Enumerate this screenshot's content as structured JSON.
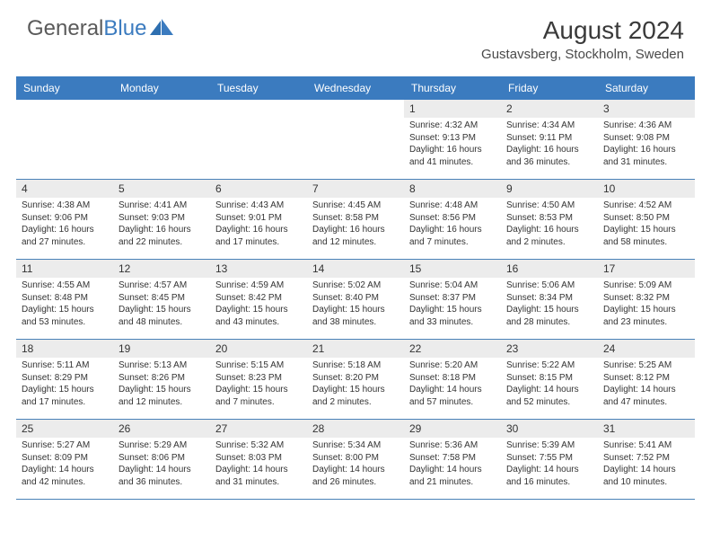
{
  "logo": {
    "text_gray": "General",
    "text_blue": "Blue"
  },
  "title": "August 2024",
  "location": "Gustavsberg, Stockholm, Sweden",
  "colors": {
    "header_bg": "#3b7bbf",
    "header_text": "#ffffff",
    "daynum_bg": "#ececec",
    "row_border": "#4a82b8",
    "text": "#333333",
    "logo_gray": "#5a5a5a",
    "logo_blue": "#3b7bbf"
  },
  "weekdays": [
    "Sunday",
    "Monday",
    "Tuesday",
    "Wednesday",
    "Thursday",
    "Friday",
    "Saturday"
  ],
  "weeks": [
    [
      {
        "empty": true
      },
      {
        "empty": true
      },
      {
        "empty": true
      },
      {
        "empty": true
      },
      {
        "day": "1",
        "sunrise": "Sunrise: 4:32 AM",
        "sunset": "Sunset: 9:13 PM",
        "daylight1": "Daylight: 16 hours",
        "daylight2": "and 41 minutes."
      },
      {
        "day": "2",
        "sunrise": "Sunrise: 4:34 AM",
        "sunset": "Sunset: 9:11 PM",
        "daylight1": "Daylight: 16 hours",
        "daylight2": "and 36 minutes."
      },
      {
        "day": "3",
        "sunrise": "Sunrise: 4:36 AM",
        "sunset": "Sunset: 9:08 PM",
        "daylight1": "Daylight: 16 hours",
        "daylight2": "and 31 minutes."
      }
    ],
    [
      {
        "day": "4",
        "sunrise": "Sunrise: 4:38 AM",
        "sunset": "Sunset: 9:06 PM",
        "daylight1": "Daylight: 16 hours",
        "daylight2": "and 27 minutes."
      },
      {
        "day": "5",
        "sunrise": "Sunrise: 4:41 AM",
        "sunset": "Sunset: 9:03 PM",
        "daylight1": "Daylight: 16 hours",
        "daylight2": "and 22 minutes."
      },
      {
        "day": "6",
        "sunrise": "Sunrise: 4:43 AM",
        "sunset": "Sunset: 9:01 PM",
        "daylight1": "Daylight: 16 hours",
        "daylight2": "and 17 minutes."
      },
      {
        "day": "7",
        "sunrise": "Sunrise: 4:45 AM",
        "sunset": "Sunset: 8:58 PM",
        "daylight1": "Daylight: 16 hours",
        "daylight2": "and 12 minutes."
      },
      {
        "day": "8",
        "sunrise": "Sunrise: 4:48 AM",
        "sunset": "Sunset: 8:56 PM",
        "daylight1": "Daylight: 16 hours",
        "daylight2": "and 7 minutes."
      },
      {
        "day": "9",
        "sunrise": "Sunrise: 4:50 AM",
        "sunset": "Sunset: 8:53 PM",
        "daylight1": "Daylight: 16 hours",
        "daylight2": "and 2 minutes."
      },
      {
        "day": "10",
        "sunrise": "Sunrise: 4:52 AM",
        "sunset": "Sunset: 8:50 PM",
        "daylight1": "Daylight: 15 hours",
        "daylight2": "and 58 minutes."
      }
    ],
    [
      {
        "day": "11",
        "sunrise": "Sunrise: 4:55 AM",
        "sunset": "Sunset: 8:48 PM",
        "daylight1": "Daylight: 15 hours",
        "daylight2": "and 53 minutes."
      },
      {
        "day": "12",
        "sunrise": "Sunrise: 4:57 AM",
        "sunset": "Sunset: 8:45 PM",
        "daylight1": "Daylight: 15 hours",
        "daylight2": "and 48 minutes."
      },
      {
        "day": "13",
        "sunrise": "Sunrise: 4:59 AM",
        "sunset": "Sunset: 8:42 PM",
        "daylight1": "Daylight: 15 hours",
        "daylight2": "and 43 minutes."
      },
      {
        "day": "14",
        "sunrise": "Sunrise: 5:02 AM",
        "sunset": "Sunset: 8:40 PM",
        "daylight1": "Daylight: 15 hours",
        "daylight2": "and 38 minutes."
      },
      {
        "day": "15",
        "sunrise": "Sunrise: 5:04 AM",
        "sunset": "Sunset: 8:37 PM",
        "daylight1": "Daylight: 15 hours",
        "daylight2": "and 33 minutes."
      },
      {
        "day": "16",
        "sunrise": "Sunrise: 5:06 AM",
        "sunset": "Sunset: 8:34 PM",
        "daylight1": "Daylight: 15 hours",
        "daylight2": "and 28 minutes."
      },
      {
        "day": "17",
        "sunrise": "Sunrise: 5:09 AM",
        "sunset": "Sunset: 8:32 PM",
        "daylight1": "Daylight: 15 hours",
        "daylight2": "and 23 minutes."
      }
    ],
    [
      {
        "day": "18",
        "sunrise": "Sunrise: 5:11 AM",
        "sunset": "Sunset: 8:29 PM",
        "daylight1": "Daylight: 15 hours",
        "daylight2": "and 17 minutes."
      },
      {
        "day": "19",
        "sunrise": "Sunrise: 5:13 AM",
        "sunset": "Sunset: 8:26 PM",
        "daylight1": "Daylight: 15 hours",
        "daylight2": "and 12 minutes."
      },
      {
        "day": "20",
        "sunrise": "Sunrise: 5:15 AM",
        "sunset": "Sunset: 8:23 PM",
        "daylight1": "Daylight: 15 hours",
        "daylight2": "and 7 minutes."
      },
      {
        "day": "21",
        "sunrise": "Sunrise: 5:18 AM",
        "sunset": "Sunset: 8:20 PM",
        "daylight1": "Daylight: 15 hours",
        "daylight2": "and 2 minutes."
      },
      {
        "day": "22",
        "sunrise": "Sunrise: 5:20 AM",
        "sunset": "Sunset: 8:18 PM",
        "daylight1": "Daylight: 14 hours",
        "daylight2": "and 57 minutes."
      },
      {
        "day": "23",
        "sunrise": "Sunrise: 5:22 AM",
        "sunset": "Sunset: 8:15 PM",
        "daylight1": "Daylight: 14 hours",
        "daylight2": "and 52 minutes."
      },
      {
        "day": "24",
        "sunrise": "Sunrise: 5:25 AM",
        "sunset": "Sunset: 8:12 PM",
        "daylight1": "Daylight: 14 hours",
        "daylight2": "and 47 minutes."
      }
    ],
    [
      {
        "day": "25",
        "sunrise": "Sunrise: 5:27 AM",
        "sunset": "Sunset: 8:09 PM",
        "daylight1": "Daylight: 14 hours",
        "daylight2": "and 42 minutes."
      },
      {
        "day": "26",
        "sunrise": "Sunrise: 5:29 AM",
        "sunset": "Sunset: 8:06 PM",
        "daylight1": "Daylight: 14 hours",
        "daylight2": "and 36 minutes."
      },
      {
        "day": "27",
        "sunrise": "Sunrise: 5:32 AM",
        "sunset": "Sunset: 8:03 PM",
        "daylight1": "Daylight: 14 hours",
        "daylight2": "and 31 minutes."
      },
      {
        "day": "28",
        "sunrise": "Sunrise: 5:34 AM",
        "sunset": "Sunset: 8:00 PM",
        "daylight1": "Daylight: 14 hours",
        "daylight2": "and 26 minutes."
      },
      {
        "day": "29",
        "sunrise": "Sunrise: 5:36 AM",
        "sunset": "Sunset: 7:58 PM",
        "daylight1": "Daylight: 14 hours",
        "daylight2": "and 21 minutes."
      },
      {
        "day": "30",
        "sunrise": "Sunrise: 5:39 AM",
        "sunset": "Sunset: 7:55 PM",
        "daylight1": "Daylight: 14 hours",
        "daylight2": "and 16 minutes."
      },
      {
        "day": "31",
        "sunrise": "Sunrise: 5:41 AM",
        "sunset": "Sunset: 7:52 PM",
        "daylight1": "Daylight: 14 hours",
        "daylight2": "and 10 minutes."
      }
    ]
  ]
}
